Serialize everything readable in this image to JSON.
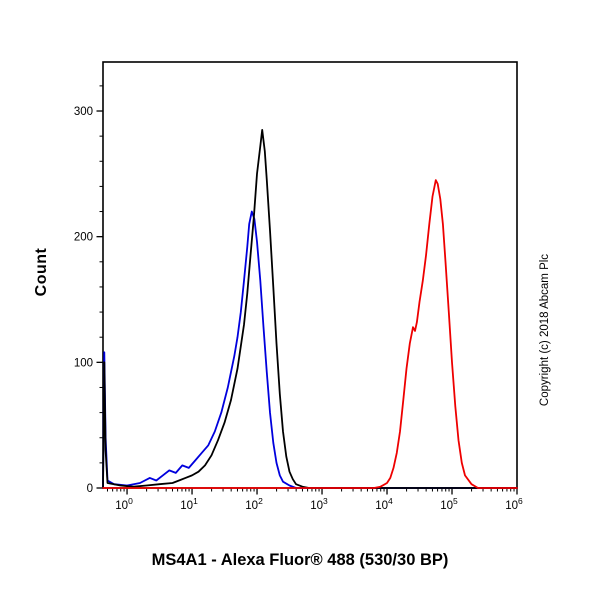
{
  "page": {
    "title": "MS4A1 - Alexa Fluor® 488 (530/30 BP)",
    "copyright": "Copyright (c) 2018 Abcam Plc"
  },
  "chart_data": {
    "type": "line",
    "subtype": "flow-cytometry-histogram",
    "title": "MS4A1 - Alexa Fluor® 488 (530/30 BP)",
    "xlabel": "",
    "ylabel": "Count",
    "x_scale": "log10",
    "xlim_log": [
      -0.37,
      6
    ],
    "x_tick_exponents": [
      0,
      1,
      2,
      3,
      4,
      5,
      6
    ],
    "ylim": [
      0,
      339
    ],
    "y_ticks": [
      0,
      100,
      200,
      300
    ],
    "y_minor_step": 20,
    "grid": false,
    "legend_position": "none",
    "series": [
      {
        "name": "blue-curve",
        "color": "#0000dd",
        "points": [
          [
            -0.37,
            0
          ],
          [
            -0.36,
            50
          ],
          [
            -0.35,
            108
          ],
          [
            -0.33,
            40
          ],
          [
            -0.3,
            6
          ],
          [
            -0.2,
            3
          ],
          [
            0.0,
            2
          ],
          [
            0.2,
            4
          ],
          [
            0.35,
            8
          ],
          [
            0.45,
            6
          ],
          [
            0.55,
            10
          ],
          [
            0.65,
            14
          ],
          [
            0.75,
            12
          ],
          [
            0.85,
            18
          ],
          [
            0.95,
            16
          ],
          [
            1.05,
            22
          ],
          [
            1.15,
            28
          ],
          [
            1.25,
            34
          ],
          [
            1.35,
            45
          ],
          [
            1.45,
            60
          ],
          [
            1.55,
            80
          ],
          [
            1.65,
            105
          ],
          [
            1.7,
            120
          ],
          [
            1.75,
            140
          ],
          [
            1.8,
            165
          ],
          [
            1.85,
            192
          ],
          [
            1.88,
            210
          ],
          [
            1.92,
            220
          ],
          [
            1.96,
            214
          ],
          [
            2.0,
            196
          ],
          [
            2.05,
            165
          ],
          [
            2.1,
            128
          ],
          [
            2.15,
            92
          ],
          [
            2.2,
            60
          ],
          [
            2.25,
            36
          ],
          [
            2.3,
            20
          ],
          [
            2.35,
            10
          ],
          [
            2.4,
            5
          ],
          [
            2.5,
            2
          ],
          [
            2.6,
            0
          ],
          [
            6.0,
            0
          ]
        ]
      },
      {
        "name": "black-curve",
        "color": "#000000",
        "points": [
          [
            -0.37,
            0
          ],
          [
            -0.36,
            45
          ],
          [
            -0.35,
            100
          ],
          [
            -0.33,
            30
          ],
          [
            -0.3,
            4
          ],
          [
            -0.1,
            2
          ],
          [
            0.1,
            1
          ],
          [
            0.3,
            2
          ],
          [
            0.5,
            3
          ],
          [
            0.7,
            4
          ],
          [
            0.8,
            6
          ],
          [
            0.9,
            8
          ],
          [
            1.0,
            10
          ],
          [
            1.1,
            13
          ],
          [
            1.2,
            18
          ],
          [
            1.3,
            26
          ],
          [
            1.4,
            38
          ],
          [
            1.5,
            52
          ],
          [
            1.6,
            70
          ],
          [
            1.7,
            95
          ],
          [
            1.8,
            130
          ],
          [
            1.85,
            155
          ],
          [
            1.9,
            185
          ],
          [
            1.95,
            215
          ],
          [
            2.0,
            250
          ],
          [
            2.05,
            272
          ],
          [
            2.08,
            285
          ],
          [
            2.12,
            268
          ],
          [
            2.15,
            245
          ],
          [
            2.2,
            205
          ],
          [
            2.25,
            160
          ],
          [
            2.3,
            115
          ],
          [
            2.35,
            75
          ],
          [
            2.4,
            45
          ],
          [
            2.45,
            25
          ],
          [
            2.5,
            13
          ],
          [
            2.55,
            7
          ],
          [
            2.6,
            3
          ],
          [
            2.7,
            1
          ],
          [
            2.8,
            0
          ],
          [
            6.0,
            0
          ]
        ]
      },
      {
        "name": "red-curve",
        "color": "#ee0000",
        "points": [
          [
            -0.37,
            0
          ],
          [
            3.8,
            0
          ],
          [
            3.9,
            1
          ],
          [
            4.0,
            4
          ],
          [
            4.05,
            8
          ],
          [
            4.1,
            16
          ],
          [
            4.15,
            28
          ],
          [
            4.2,
            45
          ],
          [
            4.25,
            70
          ],
          [
            4.3,
            95
          ],
          [
            4.35,
            115
          ],
          [
            4.4,
            128
          ],
          [
            4.43,
            125
          ],
          [
            4.46,
            132
          ],
          [
            4.5,
            148
          ],
          [
            4.55,
            165
          ],
          [
            4.6,
            185
          ],
          [
            4.65,
            210
          ],
          [
            4.7,
            232
          ],
          [
            4.75,
            245
          ],
          [
            4.78,
            242
          ],
          [
            4.82,
            230
          ],
          [
            4.86,
            210
          ],
          [
            4.9,
            180
          ],
          [
            4.95,
            140
          ],
          [
            5.0,
            100
          ],
          [
            5.05,
            65
          ],
          [
            5.1,
            38
          ],
          [
            5.15,
            20
          ],
          [
            5.2,
            10
          ],
          [
            5.3,
            3
          ],
          [
            5.4,
            0
          ],
          [
            6.0,
            0
          ]
        ]
      }
    ]
  }
}
